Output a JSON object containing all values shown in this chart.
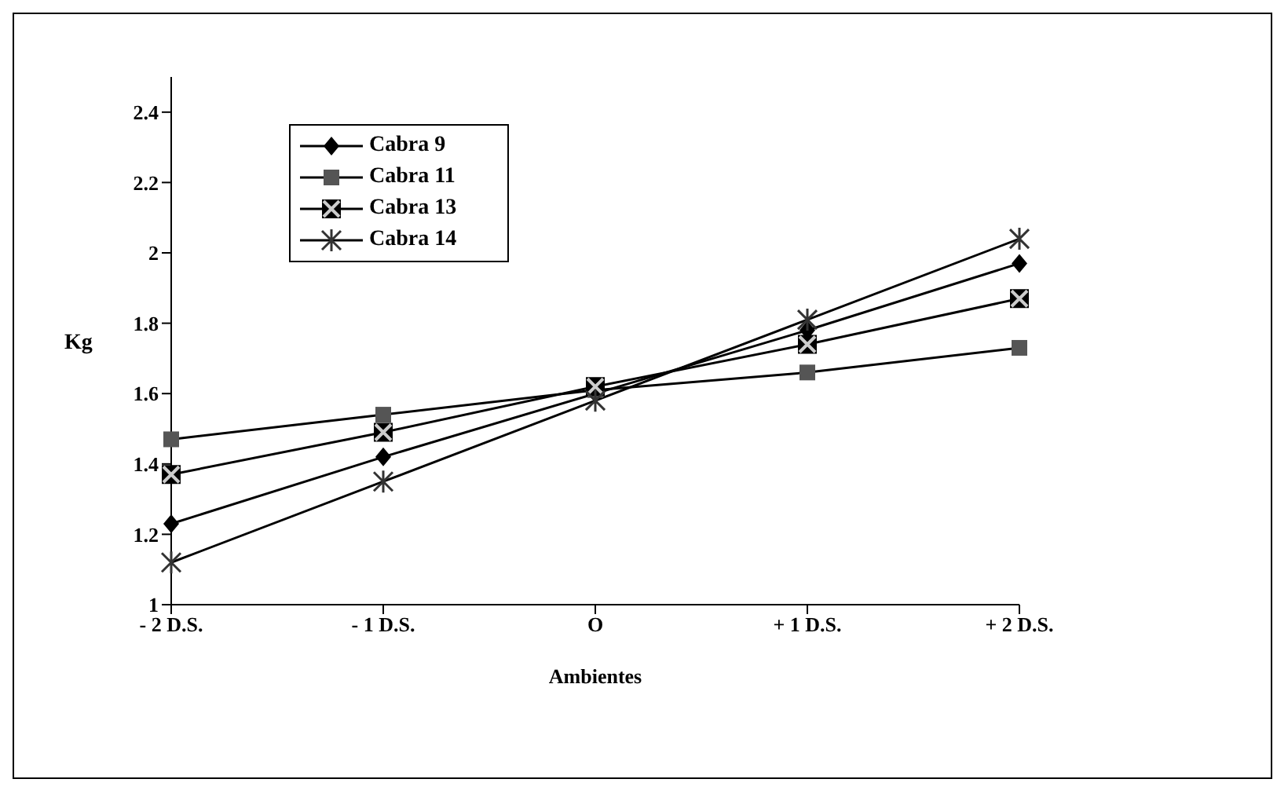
{
  "chart_data": {
    "type": "line",
    "xlabel": "Ambientes",
    "ylabel": "Kg",
    "categories": [
      "- 2 D.S.",
      "- 1 D.S.",
      "O",
      "+ 1 D.S.",
      "+ 2 D.S."
    ],
    "series": [
      {
        "name": "Cabra 9",
        "color": "#000000",
        "marker": "diamond",
        "values": [
          1.23,
          1.42,
          1.6,
          1.78,
          1.97
        ]
      },
      {
        "name": "Cabra 11",
        "color": "#555555",
        "marker": "square",
        "values": [
          1.47,
          1.54,
          1.61,
          1.66,
          1.73
        ]
      },
      {
        "name": "Cabra 13",
        "color": "#000000",
        "marker": "square",
        "values": [
          1.37,
          1.49,
          1.62,
          1.74,
          1.87
        ]
      },
      {
        "name": "Cabra 14",
        "color": "#333333",
        "marker": "cross",
        "values": [
          1.12,
          1.35,
          1.58,
          1.81,
          2.04
        ]
      }
    ],
    "ylim": [
      1,
      2.5
    ],
    "yticks": [
      1,
      1.2,
      1.4,
      1.6,
      1.8,
      2,
      2.2,
      2.4
    ],
    "grid": false,
    "legend": "top left",
    "line_style": "solid"
  }
}
